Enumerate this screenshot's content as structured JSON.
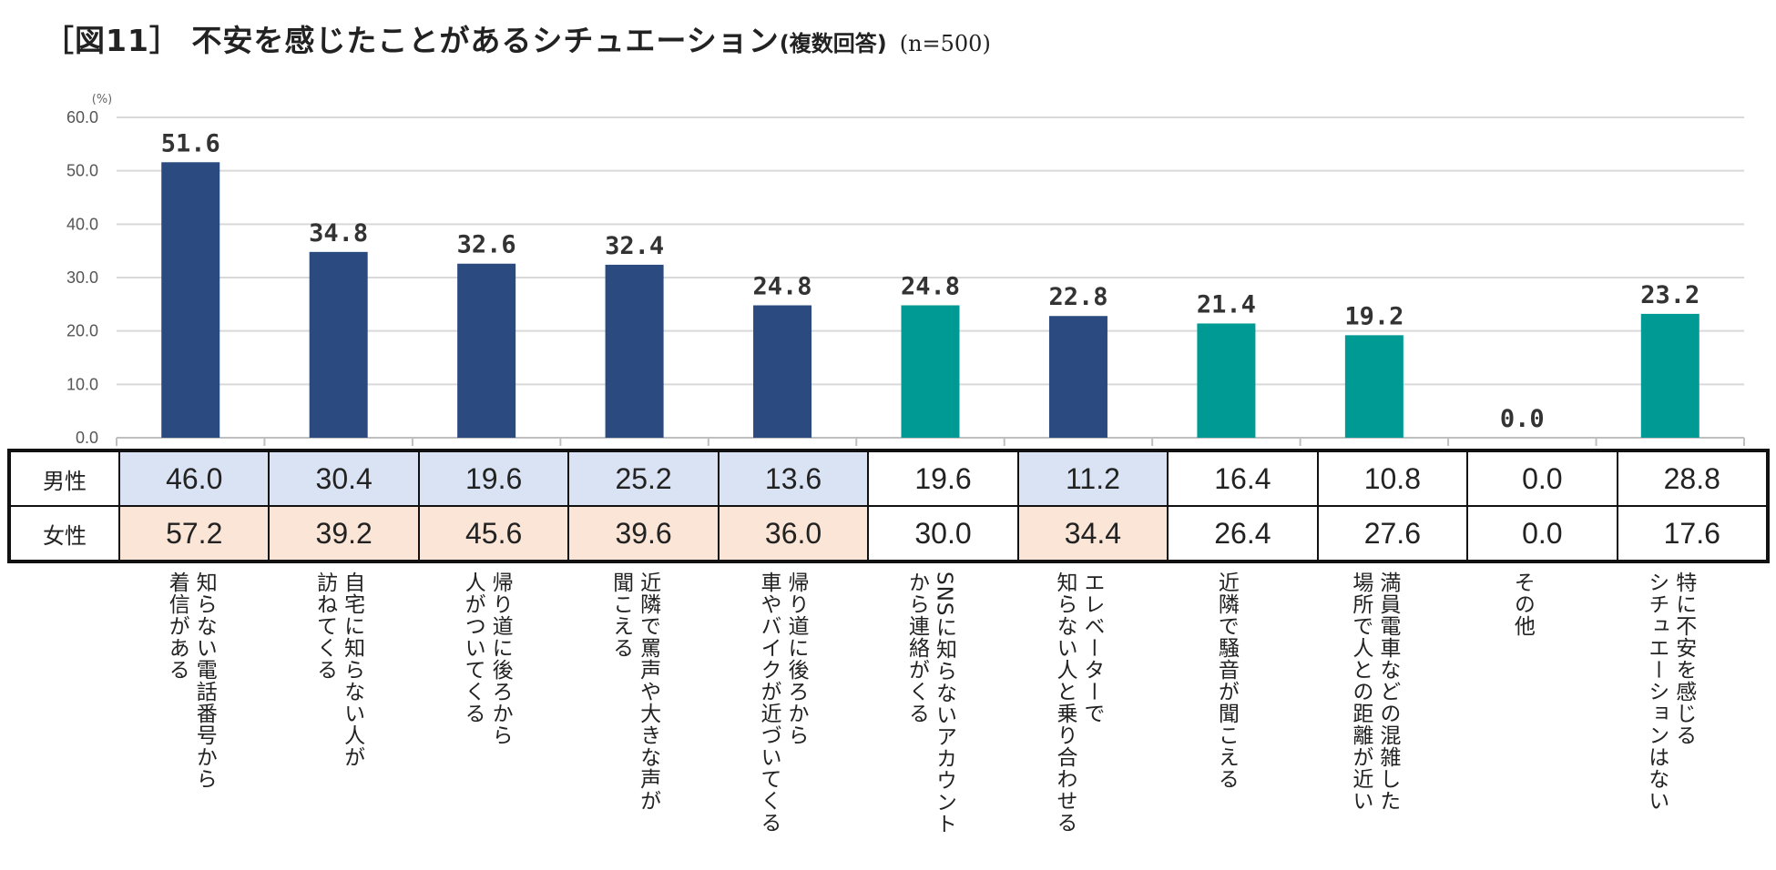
{
  "title": {
    "main": "［図11］ 不安を感じたことがあるシチュエーション",
    "sub": "(複数回答)",
    "n": "(n=500)"
  },
  "chart_data": {
    "type": "bar",
    "unit": "(%)",
    "ylim": [
      0,
      60
    ],
    "yticks": [
      "0.0",
      "10.0",
      "20.0",
      "30.0",
      "40.0",
      "50.0",
      "60.0"
    ],
    "categories": [
      [
        "知らない電話番号から",
        "着信がある"
      ],
      [
        "自宅に知らない人が",
        "訪ねてくる"
      ],
      [
        "帰り道に後ろから",
        "人がついてくる"
      ],
      [
        "近隣で罵声や大きな声が",
        "聞こえる"
      ],
      [
        "帰り道に後ろから",
        "車やバイクが近づいてくる"
      ],
      [
        "SNSに知らないアカウント",
        "から連絡がくる"
      ],
      [
        "エレベーターで",
        "知らない人と乗り合わせる"
      ],
      [
        "近隣で騒音が聞こえる"
      ],
      [
        "満員電車などの混雑した",
        "場所で人との距離が近い"
      ],
      [
        "その他"
      ],
      [
        "特に不安を感じる",
        "シチュエーションはない"
      ]
    ],
    "values": [
      51.6,
      34.8,
      32.6,
      32.4,
      24.8,
      24.8,
      22.8,
      21.4,
      19.2,
      0.0,
      23.2
    ],
    "value_labels": [
      "51.6",
      "34.8",
      "32.6",
      "32.4",
      "24.8",
      "24.8",
      "22.8",
      "21.4",
      "19.2",
      "0.0",
      "23.2"
    ],
    "bar_colors": [
      "#2b4a80",
      "#2b4a80",
      "#2b4a80",
      "#2b4a80",
      "#2b4a80",
      "#009a94",
      "#2b4a80",
      "#009a94",
      "#009a94",
      "#009a94",
      "#009a94"
    ]
  },
  "table": {
    "rows": [
      {
        "label": "男性",
        "values": [
          "46.0",
          "30.4",
          "19.6",
          "25.2",
          "13.6",
          "19.6",
          "11.2",
          "16.4",
          "10.8",
          "0.0",
          "28.8"
        ],
        "highlight": [
          true,
          true,
          true,
          true,
          true,
          false,
          true,
          false,
          false,
          false,
          false
        ]
      },
      {
        "label": "女性",
        "values": [
          "57.2",
          "39.2",
          "45.6",
          "39.6",
          "36.0",
          "30.0",
          "34.4",
          "26.4",
          "27.6",
          "0.0",
          "17.6"
        ],
        "highlight": [
          true,
          true,
          true,
          true,
          true,
          false,
          true,
          false,
          false,
          false,
          false
        ]
      }
    ]
  }
}
